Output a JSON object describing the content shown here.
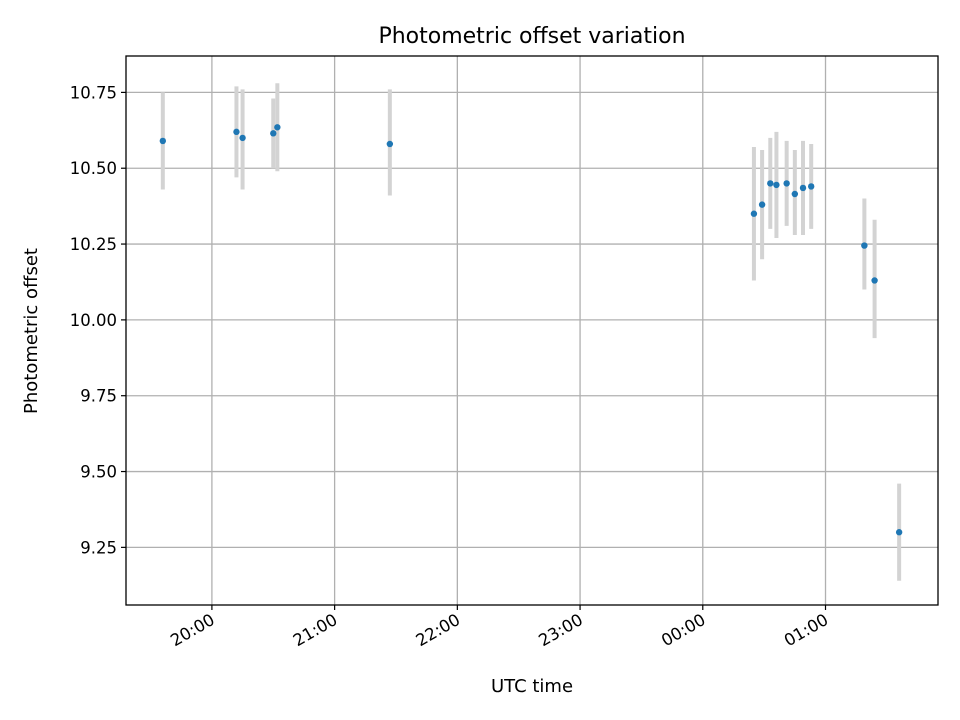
{
  "chart_data": {
    "type": "scatter",
    "title": "Photometric offset variation",
    "xlabel": "UTC time",
    "ylabel": "Photometric offset",
    "grid": true,
    "legend": "none",
    "marker_color": "#1f77b4",
    "errorbar_color": "#d3d3d3",
    "xlim": [
      "19:18",
      "01:55"
    ],
    "ylim": [
      9.06,
      10.87
    ],
    "x_ticks": [
      "20:00",
      "21:00",
      "22:00",
      "23:00",
      "00:00",
      "01:00"
    ],
    "y_ticks": [
      "10.75",
      "10.50",
      "10.25",
      "10.00",
      "9.75",
      "9.50",
      "9.25"
    ],
    "points": [
      {
        "x": "19:36",
        "y": 10.59,
        "ylow": 10.43,
        "yhigh": 10.75
      },
      {
        "x": "20:12",
        "y": 10.62,
        "ylow": 10.47,
        "yhigh": 10.77
      },
      {
        "x": "20:15",
        "y": 10.6,
        "ylow": 10.43,
        "yhigh": 10.76
      },
      {
        "x": "20:30",
        "y": 10.615,
        "ylow": 10.5,
        "yhigh": 10.73
      },
      {
        "x": "20:32",
        "y": 10.635,
        "ylow": 10.49,
        "yhigh": 10.78
      },
      {
        "x": "21:27",
        "y": 10.58,
        "ylow": 10.41,
        "yhigh": 10.76
      },
      {
        "x": "00:25",
        "y": 10.35,
        "ylow": 10.13,
        "yhigh": 10.57
      },
      {
        "x": "00:29",
        "y": 10.38,
        "ylow": 10.2,
        "yhigh": 10.56
      },
      {
        "x": "00:33",
        "y": 10.45,
        "ylow": 10.3,
        "yhigh": 10.6
      },
      {
        "x": "00:36",
        "y": 10.445,
        "ylow": 10.27,
        "yhigh": 10.62
      },
      {
        "x": "00:41",
        "y": 10.45,
        "ylow": 10.31,
        "yhigh": 10.59
      },
      {
        "x": "00:45",
        "y": 10.415,
        "ylow": 10.28,
        "yhigh": 10.56
      },
      {
        "x": "00:49",
        "y": 10.435,
        "ylow": 10.28,
        "yhigh": 10.59
      },
      {
        "x": "00:53",
        "y": 10.44,
        "ylow": 10.3,
        "yhigh": 10.58
      },
      {
        "x": "01:19",
        "y": 10.245,
        "ylow": 10.1,
        "yhigh": 10.4
      },
      {
        "x": "01:24",
        "y": 10.13,
        "ylow": 9.94,
        "yhigh": 10.33
      },
      {
        "x": "01:36",
        "y": 9.3,
        "ylow": 9.14,
        "yhigh": 9.46
      }
    ]
  }
}
